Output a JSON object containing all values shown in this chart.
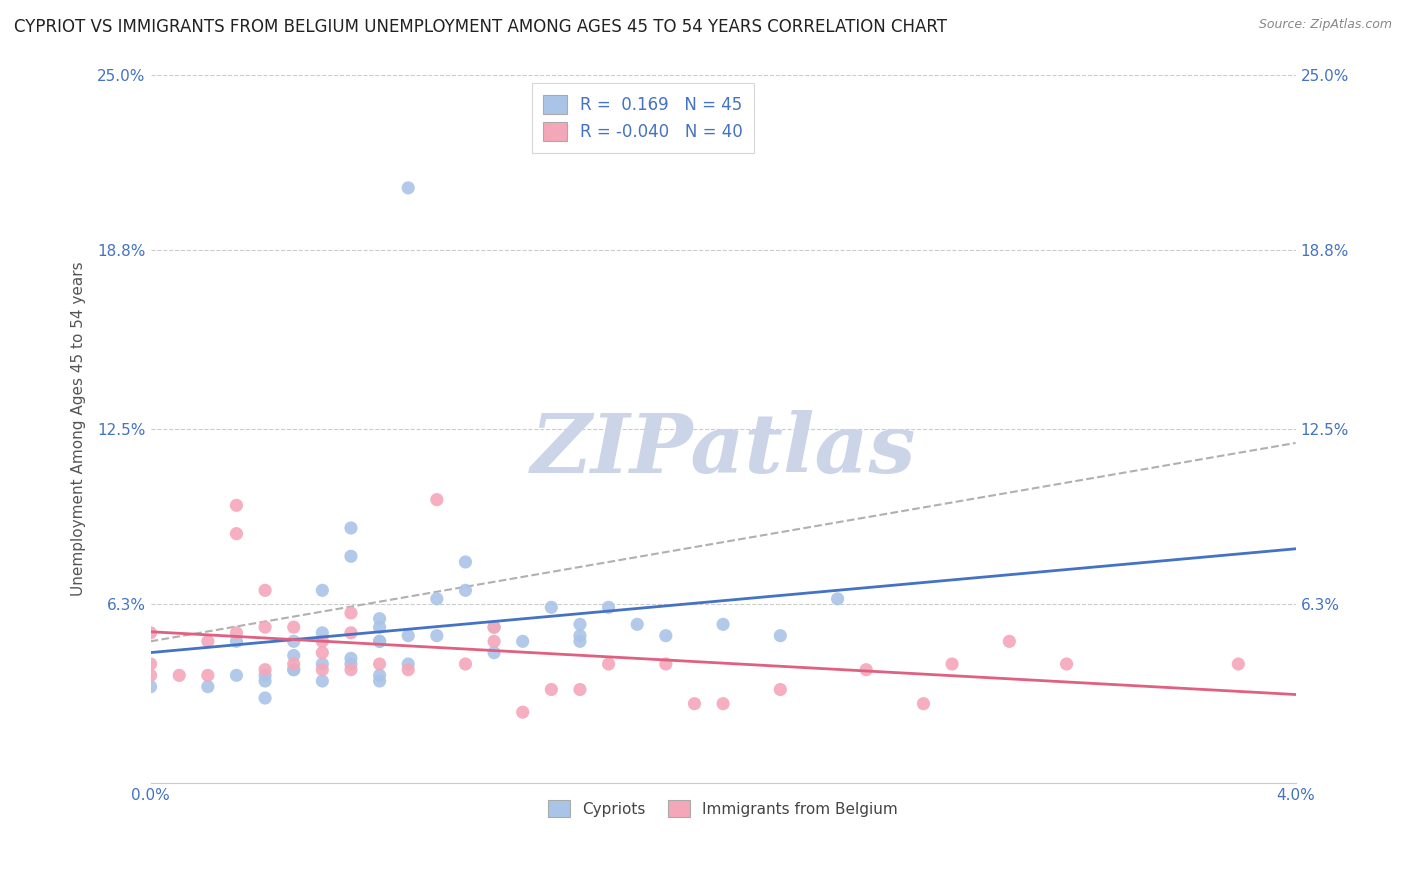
{
  "title": "CYPRIOT VS IMMIGRANTS FROM BELGIUM UNEMPLOYMENT AMONG AGES 45 TO 54 YEARS CORRELATION CHART",
  "source": "Source: ZipAtlas.com",
  "ylabel": "Unemployment Among Ages 45 to 54 years",
  "xlim": [
    0.0,
    0.04
  ],
  "ylim": [
    0.0,
    0.25
  ],
  "yticks": [
    0.063,
    0.125,
    0.188,
    0.25
  ],
  "ytick_labels": [
    "6.3%",
    "12.5%",
    "18.8%",
    "25.0%"
  ],
  "xticks": [
    0.0,
    0.04
  ],
  "xtick_labels": [
    "0.0%",
    "4.0%"
  ],
  "legend_labels": [
    "Cypriots",
    "Immigrants from Belgium"
  ],
  "cypriot_color": "#aac4e8",
  "immigrant_color": "#f4a7b9",
  "trendline_cypriot_color": "#4472c4",
  "trendline_immigrant_color": "#e06080",
  "trendline_dashed_color": "#b0b0b0",
  "R_cypriot": 0.169,
  "N_cypriot": 45,
  "R_immigrant": -0.04,
  "N_immigrant": 40,
  "cypriot_x": [
    0.0,
    0.002,
    0.003,
    0.003,
    0.004,
    0.004,
    0.004,
    0.005,
    0.005,
    0.005,
    0.005,
    0.006,
    0.006,
    0.006,
    0.006,
    0.007,
    0.007,
    0.007,
    0.007,
    0.008,
    0.008,
    0.008,
    0.008,
    0.008,
    0.008,
    0.009,
    0.009,
    0.009,
    0.01,
    0.01,
    0.011,
    0.011,
    0.012,
    0.012,
    0.013,
    0.014,
    0.015,
    0.015,
    0.015,
    0.016,
    0.017,
    0.018,
    0.02,
    0.022,
    0.024
  ],
  "cypriot_y": [
    0.034,
    0.034,
    0.038,
    0.05,
    0.036,
    0.038,
    0.03,
    0.04,
    0.045,
    0.05,
    0.04,
    0.036,
    0.042,
    0.053,
    0.068,
    0.042,
    0.044,
    0.08,
    0.09,
    0.05,
    0.055,
    0.058,
    0.036,
    0.05,
    0.038,
    0.042,
    0.052,
    0.21,
    0.052,
    0.065,
    0.068,
    0.078,
    0.046,
    0.055,
    0.05,
    0.062,
    0.052,
    0.056,
    0.05,
    0.062,
    0.056,
    0.052,
    0.056,
    0.052,
    0.065
  ],
  "immigrant_x": [
    0.0,
    0.0,
    0.0,
    0.001,
    0.002,
    0.002,
    0.003,
    0.003,
    0.003,
    0.004,
    0.004,
    0.004,
    0.005,
    0.005,
    0.006,
    0.006,
    0.006,
    0.007,
    0.007,
    0.007,
    0.008,
    0.009,
    0.01,
    0.011,
    0.012,
    0.012,
    0.013,
    0.014,
    0.015,
    0.016,
    0.018,
    0.019,
    0.02,
    0.022,
    0.025,
    0.027,
    0.028,
    0.03,
    0.032,
    0.038
  ],
  "immigrant_y": [
    0.042,
    0.053,
    0.038,
    0.038,
    0.05,
    0.038,
    0.088,
    0.098,
    0.053,
    0.04,
    0.055,
    0.068,
    0.042,
    0.055,
    0.046,
    0.05,
    0.04,
    0.053,
    0.06,
    0.04,
    0.042,
    0.04,
    0.1,
    0.042,
    0.055,
    0.05,
    0.025,
    0.033,
    0.033,
    0.042,
    0.042,
    0.028,
    0.028,
    0.033,
    0.04,
    0.028,
    0.042,
    0.05,
    0.042,
    0.042
  ],
  "background_color": "#ffffff",
  "grid_color": "#cccccc",
  "title_fontsize": 12,
  "axis_label_fontsize": 11,
  "tick_fontsize": 11,
  "watermark": "ZIPatlas",
  "watermark_color": "#ccd5e8"
}
